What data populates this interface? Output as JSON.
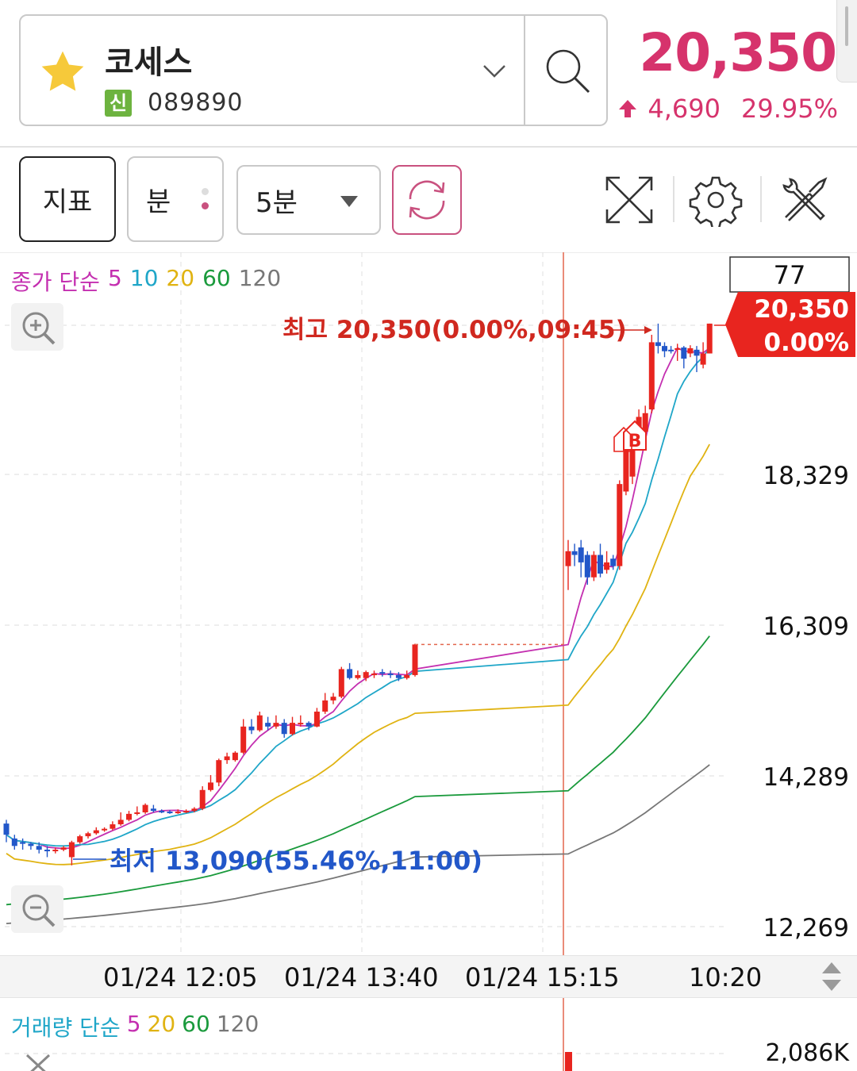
{
  "header": {
    "stock_name": "코세스",
    "market_badge": "신",
    "stock_code": "089890",
    "price": "20,350",
    "change": "4,690",
    "change_rate": "29.95%",
    "price_color": "#d6336c"
  },
  "toolbar": {
    "indicator_label": "지표",
    "period_label": "분",
    "interval_label": "5분",
    "icons": [
      "expand-icon",
      "gear-icon",
      "tools-icon"
    ]
  },
  "chart_data": {
    "type": "candlestick",
    "legend_prefix": "종가 단순",
    "ma_periods": [
      {
        "label": "5",
        "color": "#c42fb0"
      },
      {
        "label": "10",
        "color": "#1fa6c8"
      },
      {
        "label": "20",
        "color": "#e0b312"
      },
      {
        "label": "60",
        "color": "#1a9a3c"
      },
      {
        "label": "120",
        "color": "#777777"
      }
    ],
    "y_ticks": [
      "18,329",
      "16,309",
      "14,289",
      "12,269"
    ],
    "x_ticks": [
      "01/24 12:05",
      "01/24 13:40",
      "01/24 15:15",
      "10:20"
    ],
    "current_tag": {
      "price": "20,350",
      "rate": "0.00%",
      "count": "77"
    },
    "high_annotation": "최고 20,350(0.00%,09:45)",
    "low_annotation": "최저 13,090(55.46%,11:00)",
    "buy_marker": "B",
    "up_color": "#e8251f",
    "down_color": "#2257c9",
    "candles": [
      [
        13650,
        13500,
        13700,
        13400
      ],
      [
        13450,
        13350,
        13500,
        13300
      ],
      [
        13400,
        13380,
        13450,
        13300
      ],
      [
        13380,
        13350,
        13400,
        13300
      ],
      [
        13350,
        13300,
        13400,
        13250
      ],
      [
        13300,
        13290,
        13350,
        13200
      ],
      [
        13290,
        13300,
        13330,
        13250
      ],
      [
        13300,
        13330,
        13350,
        13280
      ],
      [
        13200,
        13400,
        13420,
        13090
      ],
      [
        13400,
        13480,
        13500,
        13380
      ],
      [
        13480,
        13520,
        13540,
        13450
      ],
      [
        13520,
        13560,
        13600,
        13500
      ],
      [
        13560,
        13580,
        13600,
        13540
      ],
      [
        13580,
        13640,
        13680,
        13560
      ],
      [
        13640,
        13700,
        13800,
        13620
      ],
      [
        13700,
        13780,
        13820,
        13680
      ],
      [
        13780,
        13800,
        13880,
        13760
      ],
      [
        13800,
        13900,
        13920,
        13780
      ],
      [
        13850,
        13820,
        13900,
        13800
      ],
      [
        13820,
        13810,
        13840,
        13790
      ],
      [
        13810,
        13800,
        13830,
        13780
      ],
      [
        13800,
        13810,
        13840,
        13780
      ],
      [
        13810,
        13820,
        13840,
        13790
      ],
      [
        13820,
        13850,
        13870,
        13800
      ],
      [
        13850,
        14100,
        14150,
        13830
      ],
      [
        14100,
        14200,
        14300,
        14080
      ],
      [
        14200,
        14500,
        14520,
        14150
      ],
      [
        14500,
        14550,
        14600,
        14450
      ],
      [
        14500,
        14600,
        14620,
        14480
      ],
      [
        14600,
        14950,
        15050,
        14580
      ],
      [
        14950,
        14900,
        15050,
        14850
      ],
      [
        14900,
        15100,
        15150,
        14880
      ],
      [
        15000,
        14950,
        15080,
        14900
      ],
      [
        14950,
        15000,
        15100,
        14920
      ],
      [
        15000,
        14850,
        15050,
        14800
      ],
      [
        14850,
        15000,
        15080,
        14830
      ],
      [
        15000,
        15000,
        15100,
        14950
      ],
      [
        15000,
        14950,
        15020,
        14900
      ],
      [
        14950,
        15150,
        15200,
        14940
      ],
      [
        15150,
        15300,
        15400,
        15120
      ],
      [
        15300,
        15350,
        15400,
        15250
      ],
      [
        15350,
        15720,
        15750,
        15330
      ],
      [
        15720,
        15600,
        15800,
        15580
      ],
      [
        15600,
        15640,
        15700,
        15580
      ],
      [
        15600,
        15680,
        15700,
        15560
      ],
      [
        15640,
        15660,
        15700,
        15600
      ],
      [
        15680,
        15660,
        15720,
        15620
      ],
      [
        15660,
        15650,
        15700,
        15600
      ],
      [
        15640,
        15600,
        15680,
        15560
      ],
      [
        15600,
        15640,
        15700,
        15580
      ],
      [
        15640,
        16050,
        16060,
        15620
      ],
      [
        17100,
        17300,
        17450,
        16780
      ],
      [
        17300,
        17250,
        17400,
        17100
      ],
      [
        17350,
        17150,
        17450,
        16950
      ],
      [
        17250,
        16950,
        17300,
        16850
      ],
      [
        16950,
        17250,
        17300,
        16900
      ],
      [
        17250,
        17000,
        17400,
        16950
      ],
      [
        17050,
        17150,
        17300,
        17000
      ],
      [
        17200,
        17100,
        17250,
        17050
      ],
      [
        17100,
        18200,
        18250,
        17050
      ],
      [
        18100,
        18700,
        18900,
        18050
      ],
      [
        18300,
        18800,
        19000,
        18200
      ],
      [
        18800,
        19100,
        19200,
        18750
      ],
      [
        18900,
        19150,
        19250,
        18850
      ],
      [
        19200,
        20100,
        20200,
        19150
      ],
      [
        20100,
        20050,
        20350,
        19950
      ],
      [
        20050,
        19980,
        20100,
        19900
      ],
      [
        20000,
        19980,
        20050,
        19950
      ],
      [
        20000,
        20020,
        20080,
        19850
      ],
      [
        20030,
        19880,
        20050,
        19750
      ],
      [
        19950,
        20020,
        20060,
        19900
      ],
      [
        20000,
        19920,
        20050,
        19700
      ],
      [
        19800,
        19950,
        20100,
        19750
      ],
      [
        19950,
        20350,
        20350,
        19950
      ]
    ]
  },
  "volume": {
    "legend_prefix": "거래량 단순",
    "ma_periods": [
      {
        "label": "5",
        "color": "#c42fb0"
      },
      {
        "label": "20",
        "color": "#e0b312"
      },
      {
        "label": "60",
        "color": "#1a9a3c"
      },
      {
        "label": "120",
        "color": "#777777"
      }
    ],
    "max_label": "2,086K"
  }
}
